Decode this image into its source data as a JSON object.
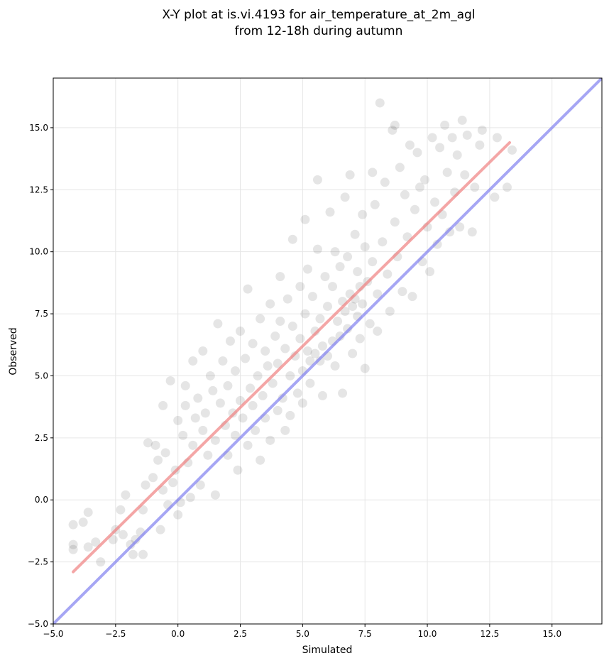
{
  "chart_data": {
    "type": "scatter",
    "title": "X-Y plot at is.vi.4193 for air_temperature_at_2m_agl",
    "subtitle": "from 12-18h during autumn",
    "xlabel": "Simulated",
    "ylabel": "Observed",
    "xlim": [
      -5.0,
      17.0
    ],
    "ylim": [
      -5.0,
      17.0
    ],
    "xticks": [
      "−5.0",
      "−2.5",
      "0.0",
      "2.5",
      "5.0",
      "7.5",
      "10.0",
      "12.5",
      "15.0"
    ],
    "yticks": [
      "−5.0",
      "−2.5",
      "0.0",
      "2.5",
      "5.0",
      "7.5",
      "10.0",
      "12.5",
      "15.0"
    ],
    "grid": true,
    "colors": {
      "points": "#000000",
      "fit_line": "#f08080",
      "identity_line": "#8080f0"
    },
    "series": [
      {
        "values": [
          [
            -4.2,
            -1.0
          ],
          [
            -4.2,
            -1.8
          ],
          [
            -4.2,
            -2.0
          ],
          [
            -3.8,
            -0.9
          ],
          [
            -3.6,
            -0.5
          ],
          [
            -3.6,
            -1.9
          ],
          [
            -3.3,
            -1.7
          ],
          [
            -3.1,
            -2.5
          ],
          [
            -2.6,
            -1.6
          ],
          [
            -2.5,
            -1.2
          ],
          [
            -2.3,
            -0.4
          ],
          [
            -2.2,
            -1.4
          ],
          [
            -2.1,
            0.2
          ],
          [
            -1.9,
            -1.8
          ],
          [
            -1.8,
            -2.2
          ],
          [
            -1.7,
            -1.6
          ],
          [
            -1.5,
            -1.3
          ],
          [
            -1.4,
            -0.4
          ],
          [
            -1.4,
            -2.2
          ],
          [
            -1.3,
            0.6
          ],
          [
            -1.2,
            2.3
          ],
          [
            -1.0,
            0.9
          ],
          [
            -0.9,
            2.2
          ],
          [
            -0.8,
            1.6
          ],
          [
            -0.7,
            -1.2
          ],
          [
            -0.6,
            3.8
          ],
          [
            -0.6,
            0.4
          ],
          [
            -0.5,
            1.9
          ],
          [
            -0.4,
            -0.2
          ],
          [
            -0.3,
            4.8
          ],
          [
            -0.2,
            0.7
          ],
          [
            -0.1,
            1.2
          ],
          [
            0.0,
            -0.6
          ],
          [
            0.0,
            3.2
          ],
          [
            0.1,
            -0.1
          ],
          [
            0.2,
            2.6
          ],
          [
            0.3,
            3.8
          ],
          [
            0.3,
            4.6
          ],
          [
            0.4,
            1.5
          ],
          [
            0.5,
            0.1
          ],
          [
            0.6,
            5.6
          ],
          [
            0.6,
            2.2
          ],
          [
            0.7,
            3.3
          ],
          [
            0.8,
            4.1
          ],
          [
            0.9,
            0.6
          ],
          [
            1.0,
            6.0
          ],
          [
            1.0,
            2.8
          ],
          [
            1.1,
            3.5
          ],
          [
            1.2,
            1.8
          ],
          [
            1.3,
            5.0
          ],
          [
            1.4,
            4.4
          ],
          [
            1.5,
            0.2
          ],
          [
            1.5,
            2.4
          ],
          [
            1.6,
            7.1
          ],
          [
            1.7,
            3.9
          ],
          [
            1.8,
            5.6
          ],
          [
            1.9,
            3.0
          ],
          [
            2.0,
            1.8
          ],
          [
            2.0,
            4.6
          ],
          [
            2.1,
            6.4
          ],
          [
            2.2,
            3.5
          ],
          [
            2.3,
            2.6
          ],
          [
            2.3,
            5.2
          ],
          [
            2.4,
            1.2
          ],
          [
            2.5,
            6.8
          ],
          [
            2.5,
            4.0
          ],
          [
            2.6,
            3.3
          ],
          [
            2.7,
            5.7
          ],
          [
            2.8,
            8.5
          ],
          [
            2.8,
            2.2
          ],
          [
            2.9,
            4.5
          ],
          [
            3.0,
            3.8
          ],
          [
            3.0,
            6.3
          ],
          [
            3.1,
            2.8
          ],
          [
            3.2,
            5.0
          ],
          [
            3.3,
            7.3
          ],
          [
            3.3,
            1.6
          ],
          [
            3.4,
            4.2
          ],
          [
            3.5,
            6.0
          ],
          [
            3.5,
            3.3
          ],
          [
            3.6,
            5.4
          ],
          [
            3.7,
            7.9
          ],
          [
            3.7,
            2.4
          ],
          [
            3.8,
            4.7
          ],
          [
            3.9,
            6.6
          ],
          [
            4.0,
            3.6
          ],
          [
            4.0,
            5.5
          ],
          [
            4.1,
            9.0
          ],
          [
            4.1,
            7.2
          ],
          [
            4.2,
            4.1
          ],
          [
            4.3,
            2.8
          ],
          [
            4.3,
            6.1
          ],
          [
            4.4,
            8.1
          ],
          [
            4.5,
            5.0
          ],
          [
            4.5,
            3.4
          ],
          [
            4.6,
            7.0
          ],
          [
            4.6,
            10.5
          ],
          [
            4.7,
            5.8
          ],
          [
            4.8,
            4.3
          ],
          [
            4.9,
            8.6
          ],
          [
            4.9,
            6.5
          ],
          [
            5.0,
            3.9
          ],
          [
            5.0,
            5.2
          ],
          [
            5.1,
            11.3
          ],
          [
            5.1,
            7.5
          ],
          [
            5.2,
            9.3
          ],
          [
            5.2,
            6.0
          ],
          [
            5.3,
            4.7
          ],
          [
            5.3,
            5.6
          ],
          [
            5.4,
            8.2
          ],
          [
            5.5,
            6.8
          ],
          [
            5.5,
            5.9
          ],
          [
            5.6,
            12.9
          ],
          [
            5.6,
            10.1
          ],
          [
            5.7,
            5.6
          ],
          [
            5.7,
            7.3
          ],
          [
            5.8,
            6.2
          ],
          [
            5.8,
            4.2
          ],
          [
            5.9,
            9.0
          ],
          [
            6.0,
            5.8
          ],
          [
            6.0,
            7.8
          ],
          [
            6.1,
            11.6
          ],
          [
            6.2,
            6.4
          ],
          [
            6.2,
            8.6
          ],
          [
            6.3,
            5.4
          ],
          [
            6.3,
            10.0
          ],
          [
            6.4,
            7.2
          ],
          [
            6.5,
            6.6
          ],
          [
            6.5,
            9.4
          ],
          [
            6.6,
            4.3
          ],
          [
            6.6,
            8.0
          ],
          [
            6.7,
            12.2
          ],
          [
            6.7,
            7.6
          ],
          [
            6.8,
            6.9
          ],
          [
            6.8,
            9.8
          ],
          [
            6.9,
            8.3
          ],
          [
            6.9,
            13.1
          ],
          [
            7.0,
            7.8
          ],
          [
            7.0,
            5.9
          ],
          [
            7.1,
            10.7
          ],
          [
            7.1,
            8.1
          ],
          [
            7.2,
            7.4
          ],
          [
            7.2,
            9.2
          ],
          [
            7.3,
            8.6
          ],
          [
            7.3,
            6.5
          ],
          [
            7.4,
            11.5
          ],
          [
            7.4,
            7.9
          ],
          [
            7.5,
            5.3
          ],
          [
            7.5,
            10.2
          ],
          [
            7.6,
            8.8
          ],
          [
            7.7,
            7.1
          ],
          [
            7.8,
            13.2
          ],
          [
            7.8,
            9.6
          ],
          [
            7.9,
            11.9
          ],
          [
            8.0,
            8.3
          ],
          [
            8.0,
            6.8
          ],
          [
            8.1,
            16.0
          ],
          [
            8.2,
            10.4
          ],
          [
            8.3,
            12.8
          ],
          [
            8.4,
            9.1
          ],
          [
            8.5,
            7.6
          ],
          [
            8.6,
            14.9
          ],
          [
            8.7,
            15.1
          ],
          [
            8.7,
            11.2
          ],
          [
            8.8,
            9.8
          ],
          [
            8.9,
            13.4
          ],
          [
            9.0,
            8.4
          ],
          [
            9.1,
            12.3
          ],
          [
            9.2,
            10.6
          ],
          [
            9.3,
            14.3
          ],
          [
            9.4,
            8.2
          ],
          [
            9.5,
            11.7
          ],
          [
            9.6,
            14.0
          ],
          [
            9.7,
            12.6
          ],
          [
            9.8,
            9.6
          ],
          [
            9.9,
            12.9
          ],
          [
            10.0,
            11.0
          ],
          [
            10.1,
            9.2
          ],
          [
            10.2,
            14.6
          ],
          [
            10.3,
            12.0
          ],
          [
            10.4,
            10.3
          ],
          [
            10.5,
            14.2
          ],
          [
            10.6,
            11.5
          ],
          [
            10.7,
            15.1
          ],
          [
            10.8,
            13.2
          ],
          [
            10.9,
            10.8
          ],
          [
            11.0,
            14.6
          ],
          [
            11.1,
            12.4
          ],
          [
            11.2,
            13.9
          ],
          [
            11.3,
            11.0
          ],
          [
            11.4,
            15.3
          ],
          [
            11.5,
            13.1
          ],
          [
            11.6,
            14.7
          ],
          [
            11.8,
            10.8
          ],
          [
            11.9,
            12.6
          ],
          [
            12.1,
            14.3
          ],
          [
            12.2,
            14.9
          ],
          [
            12.7,
            12.2
          ],
          [
            12.8,
            14.6
          ],
          [
            13.2,
            12.6
          ],
          [
            13.4,
            14.1
          ]
        ]
      }
    ],
    "lines": [
      {
        "role": "fit",
        "x": [
          -4.2,
          13.3
        ],
        "y": [
          -2.9,
          14.4
        ]
      },
      {
        "role": "identity",
        "x": [
          -5.0,
          17.0
        ],
        "y": [
          -5.0,
          17.0
        ]
      }
    ]
  }
}
